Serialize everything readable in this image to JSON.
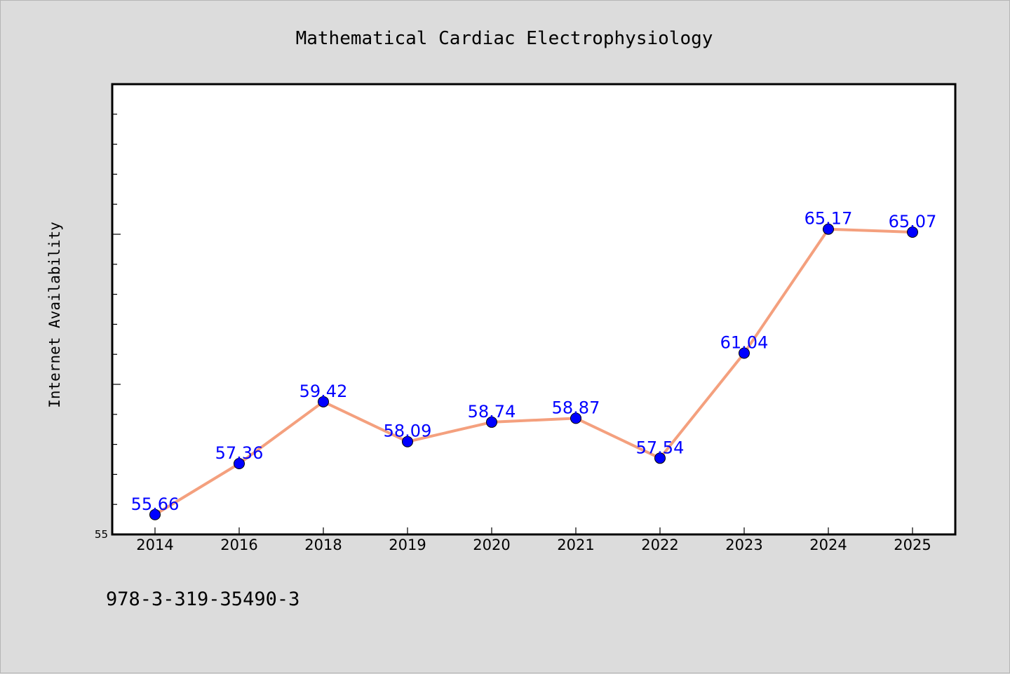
{
  "chart_data": {
    "type": "line",
    "title": "Mathematical Cardiac Electrophysiology",
    "xlabel": "",
    "ylabel": "Internet Availability",
    "categories": [
      "2014",
      "2016",
      "2018",
      "2019",
      "2020",
      "2021",
      "2022",
      "2023",
      "2024",
      "2025"
    ],
    "series": [
      {
        "values": [
          55.66,
          57.36,
          59.42,
          58.09,
          58.74,
          58.87,
          57.54,
          61.04,
          65.17,
          65.07
        ]
      }
    ],
    "ylim": [
      55,
      70
    ],
    "ytick_labels": [
      {
        "value": 55,
        "label": "55"
      }
    ],
    "grid": false,
    "legend": "none",
    "line_color": "#f4a07e",
    "marker_color": "#0000ff",
    "label_color": "#0000ff",
    "background_color": "#dcdcdc",
    "plot_background": "#ffffff"
  },
  "footer": {
    "isbn": "978-3-319-35490-3"
  }
}
